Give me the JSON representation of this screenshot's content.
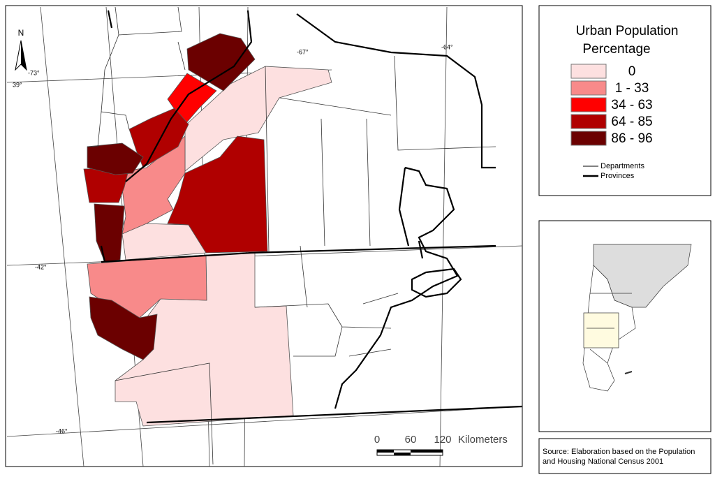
{
  "map": {
    "north": "N",
    "graticule": {
      "lon_labels": [
        "-73°",
        "-67°",
        "-64°"
      ],
      "lat_labels": [
        "39°",
        "-42°",
        "-46°"
      ]
    },
    "legend": {
      "title_lines": [
        "Urban Population",
        "Percentage"
      ],
      "classes": [
        {
          "label": "0",
          "color": "#fde0e0"
        },
        {
          "label": "1 - 33",
          "color": "#f88a8a"
        },
        {
          "label": "34 - 63",
          "color": "#ff0000"
        },
        {
          "label": "64 - 85",
          "color": "#b00000"
        },
        {
          "label": "86 - 96",
          "color": "#6b0000"
        }
      ],
      "lines": [
        "Departments",
        "Provinces"
      ]
    },
    "scale": {
      "ticks": [
        "0",
        "60",
        "120"
      ],
      "unit": "Kilometers"
    },
    "source_lines": [
      "Source: Elaboration based on the Population",
      "and Housing National Census 2001"
    ]
  }
}
